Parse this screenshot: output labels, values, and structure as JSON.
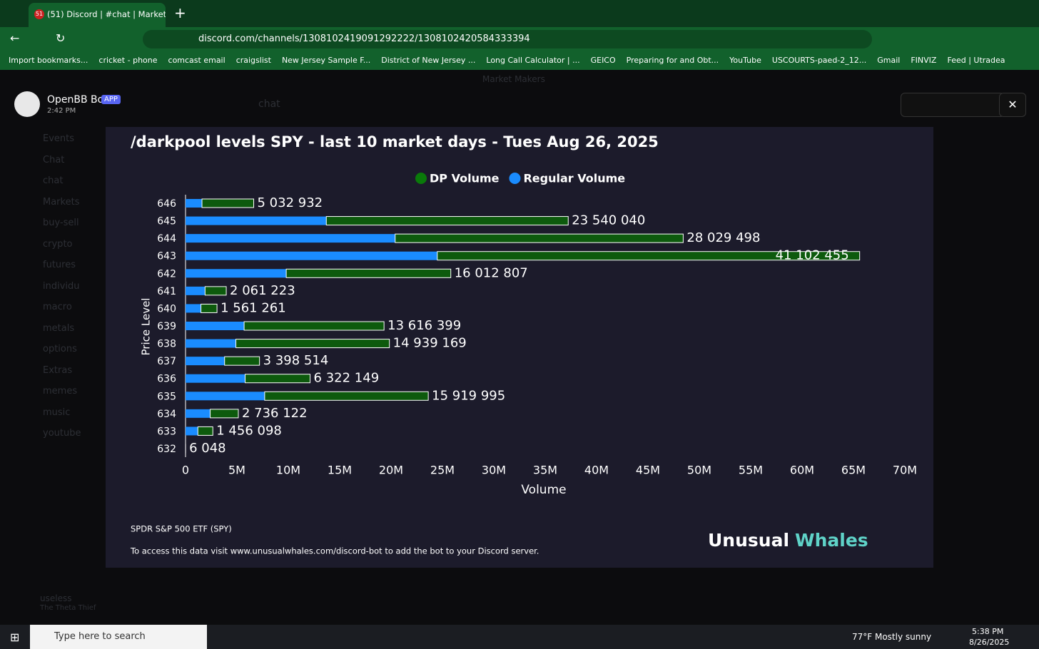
{
  "browser": {
    "tab_title": "(51) Discord | #chat | Market Ma",
    "tab_badge": "51",
    "url": "discord.com/channels/1308102419091292222/1308102420584333394",
    "bookmarks": [
      "Import bookmarks...",
      "cricket - phone",
      "comcast email",
      "craigslist",
      "New Jersey Sample F...",
      "District of New Jersey ...",
      "Long Call Calculator | ...",
      "GEICO",
      "Preparing for and Obt...",
      "YouTube",
      "USCOURTS-paed-2_12...",
      "Gmail",
      "FINVIZ",
      "Feed | Utradea"
    ]
  },
  "discord": {
    "server": "Market Makers",
    "channel": "chat",
    "sidebar": [
      "Events",
      "Chat",
      "chat",
      "Markets",
      "buy-sell",
      "crypto",
      "futures",
      "individu",
      "macro",
      "metals",
      "options",
      "Extras",
      "memes",
      "music",
      "youtube"
    ],
    "user": "useless",
    "status": "The Theta Thief",
    "bot_name": "OpenBB Bot",
    "bot_tag": "APP",
    "time": "2:42 PM"
  },
  "chart_data": {
    "type": "stacked-hbar",
    "title": "/darkpool levels SPY - last 10 market days - Tues Aug 26, 2025",
    "categories": [
      "646",
      "645",
      "644",
      "643",
      "642",
      "641",
      "640",
      "639",
      "638",
      "637",
      "636",
      "635",
      "634",
      "633",
      "632"
    ],
    "series": [
      {
        "name": "Regular Volume",
        "color": "#1a8cff",
        "values": [
          1600000,
          13700000,
          20400000,
          24500000,
          9800000,
          1900000,
          1500000,
          5700000,
          4900000,
          3800000,
          5800000,
          7700000,
          2400000,
          1200000,
          0
        ]
      },
      {
        "name": "DP Volume",
        "color": "#0a7a0a",
        "values": [
          5032932,
          23540040,
          28029498,
          41102455,
          16012807,
          2061223,
          1561261,
          13616399,
          14939169,
          3398514,
          6322149,
          15919995,
          2736122,
          1456098,
          6048
        ],
        "value_labels": [
          "5 032 932",
          "23 540 040",
          "28 029 498",
          "41 102 455",
          "16 012 807",
          "2 061 223",
          "1 561 261",
          "13 616 399",
          "14 939 169",
          "3 398 514",
          "6 322 149",
          "15 919 995",
          "2 736 122",
          "1 456 098",
          "6 048"
        ]
      }
    ],
    "legend_order": [
      1,
      0
    ],
    "xlim": [
      0,
      70000000
    ],
    "xticks": [
      0,
      {
        "value": 5000000,
        "label": "5M"
      },
      {
        "value": 10000000,
        "label": "10M"
      },
      {
        "value": 15000000,
        "label": "15M"
      },
      {
        "value": 20000000,
        "label": "20M"
      },
      {
        "value": 25000000,
        "label": "25M"
      },
      {
        "value": 30000000,
        "label": "30M"
      },
      {
        "value": 35000000,
        "label": "35M"
      },
      {
        "value": 40000000,
        "label": "40M"
      },
      {
        "value": 45000000,
        "label": "45M"
      },
      {
        "value": 50000000,
        "label": "50M"
      },
      {
        "value": 55000000,
        "label": "55M"
      },
      {
        "value": 60000000,
        "label": "60M"
      },
      {
        "value": 65000000,
        "label": "65M"
      },
      {
        "value": 70000000,
        "label": "70M"
      }
    ],
    "xlabel": "Volume",
    "ylabel": "Price Level",
    "footer": "SPDR S&P 500 ETF (SPY)",
    "note": "To access this data visit www.unusualwhales.com/discord-bot to add the bot to your Discord server.",
    "brand": [
      "Unusual",
      "Whales"
    ]
  },
  "taskbar": {
    "search": "Type here to search",
    "weather": "77°F  Mostly sunny",
    "clock": "5:38 PM",
    "date": "8/26/2025"
  }
}
